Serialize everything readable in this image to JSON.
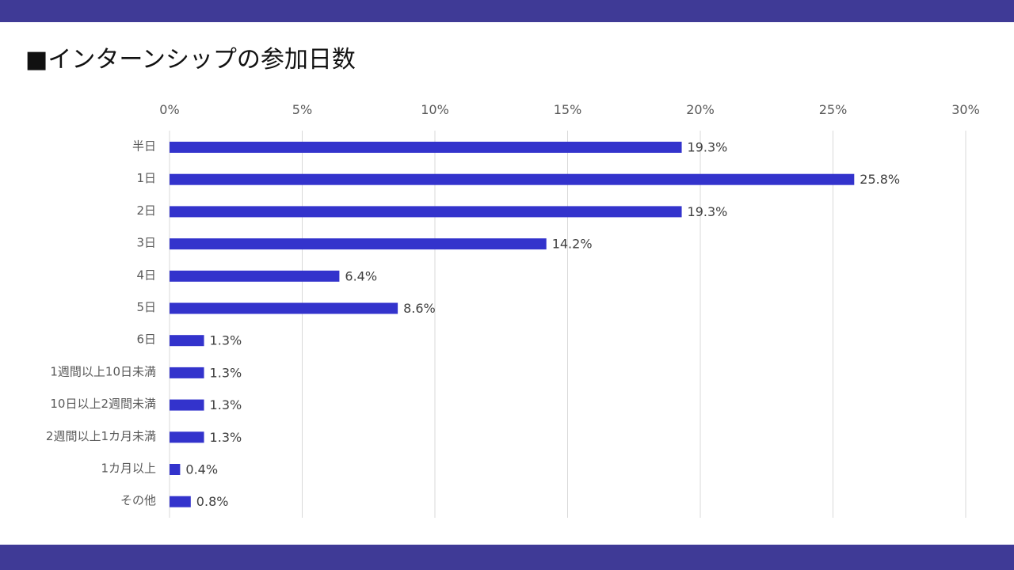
{
  "slide": {
    "title": "■インターンシップの参加日数"
  },
  "colors": {
    "band": "#3f3a96",
    "bar": "#3333cc",
    "grid": "#d9d9d9"
  },
  "chart_data": {
    "type": "bar",
    "orientation": "horizontal",
    "title": "",
    "xlabel": "",
    "ylabel": "",
    "xlim": [
      0,
      30
    ],
    "x_axis_position": "top",
    "tick_values": [
      0,
      5,
      10,
      15,
      20,
      25,
      30
    ],
    "tick_labels": [
      "0%",
      "5%",
      "10%",
      "15%",
      "20%",
      "25%",
      "30%"
    ],
    "grid": true,
    "legend": "none",
    "categories": [
      "半日",
      "1日",
      "2日",
      "3日",
      "4日",
      "5日",
      "6日",
      "1週間以上10日未満",
      "10日以上2週間未満",
      "2週間以上1カ月未満",
      "1カ月以上",
      "その他"
    ],
    "values": [
      19.3,
      25.8,
      19.3,
      14.2,
      6.4,
      8.6,
      1.3,
      1.3,
      1.3,
      1.3,
      0.4,
      0.8
    ],
    "value_labels": [
      "19.3%",
      "25.8%",
      "19.3%",
      "14.2%",
      "6.4%",
      "8.6%",
      "1.3%",
      "1.3%",
      "1.3%",
      "1.3%",
      "0.4%",
      "0.8%"
    ]
  }
}
